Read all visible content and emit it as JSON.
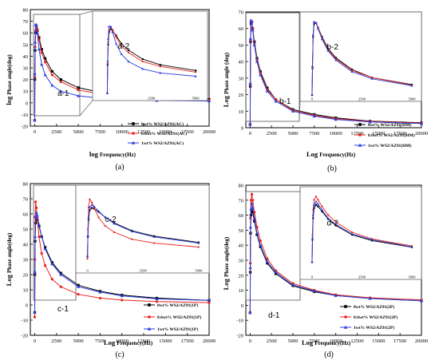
{
  "chart_data": [
    {
      "id": "a",
      "type": "line",
      "caption": "(a)",
      "xlabel_prefix": "log",
      "xlabel": "Frequency(Hz)",
      "ylabel_prefix": "log",
      "ylabel": "Phase angle(deg)",
      "xlim": [
        -500,
        20000
      ],
      "ylim": [
        -20,
        80
      ],
      "xticks": [
        0,
        2500,
        5000,
        7500,
        10000,
        12500,
        15000,
        17500,
        20000
      ],
      "yticks": [
        -20,
        -10,
        0,
        10,
        20,
        30,
        40,
        50,
        60,
        70,
        80
      ],
      "inset_label": "a-2",
      "main_label": "a-1",
      "inset_xticks": [
        "2500",
        "5000"
      ],
      "series": [
        {
          "name": "0wt% WS2/AZ91(AC)",
          "color": "#000000",
          "marker": "square",
          "x": [
            0,
            20,
            50,
            100,
            200,
            300,
            500,
            800,
            1200,
            2000,
            3000,
            5000,
            7500,
            10000,
            14000,
            20000
          ],
          "y": [
            -15,
            20,
            45,
            60,
            64,
            62,
            56,
            46,
            38,
            27,
            20,
            13,
            9,
            6.5,
            4.5,
            3
          ]
        },
        {
          "name": "0.6wt% WS2/AZ91(AC)",
          "color": "#e8231a",
          "marker": "circle",
          "x": [
            0,
            20,
            50,
            100,
            200,
            300,
            500,
            800,
            1200,
            2000,
            3000,
            5000,
            7500,
            10000,
            14000,
            20000
          ],
          "y": [
            -15,
            22,
            48,
            62,
            66,
            63,
            54,
            43,
            35,
            24,
            18,
            11,
            7.5,
            5.5,
            3.8,
            2.5
          ]
        },
        {
          "name": "1wt% WS2/AZ91(AC)",
          "color": "#2a3fe0",
          "marker": "triangle",
          "x": [
            0,
            20,
            50,
            100,
            200,
            300,
            500,
            800,
            1200,
            2000,
            3000,
            5000,
            7500,
            10000,
            14000,
            20000
          ],
          "y": [
            -15,
            25,
            52,
            67,
            67,
            60,
            46,
            33,
            24,
            15,
            10,
            6,
            4,
            3,
            2,
            1.5
          ]
        }
      ]
    },
    {
      "id": "b",
      "type": "line",
      "caption": "(b)",
      "xlabel_prefix": "Log",
      "xlabel": "Frequency(Hz)",
      "ylabel_prefix": "Log",
      "ylabel": "Phase angle (deg)",
      "xlim": [
        -500,
        20000
      ],
      "ylim": [
        0,
        70
      ],
      "xticks": [
        0,
        2500,
        5000,
        7500,
        10000,
        12500,
        15000,
        17500,
        20000
      ],
      "yticks": [
        0,
        10,
        20,
        30,
        40,
        50,
        60,
        70
      ],
      "inset_label": "b-2",
      "main_label": "b-1",
      "inset_xticks": [
        "0",
        "2500",
        "5000"
      ],
      "series": [
        {
          "name": "0wt% WS2/AZ91(HM)",
          "color": "#000000",
          "marker": "square",
          "x": [
            0,
            20,
            50,
            100,
            200,
            300,
            500,
            800,
            1200,
            2000,
            3000,
            5000,
            7500,
            10000,
            14000,
            20000
          ],
          "y": [
            2,
            25,
            52,
            63,
            64,
            60,
            52,
            42,
            34,
            24,
            17,
            11,
            8,
            6,
            4,
            3
          ]
        },
        {
          "name": "0.6wt% WS2/AZ91(HM)",
          "color": "#e8231a",
          "marker": "circle",
          "x": [
            0,
            20,
            50,
            100,
            200,
            300,
            500,
            800,
            1200,
            2000,
            3000,
            5000,
            7500,
            10000,
            14000,
            20000
          ],
          "y": [
            2,
            26,
            53,
            64,
            64,
            60,
            51,
            41,
            33,
            23,
            17,
            10.5,
            7.5,
            5.5,
            3.8,
            2.8
          ]
        },
        {
          "name": "1wt% WS2/AZ91(HM)",
          "color": "#2a3fe0",
          "marker": "triangle",
          "x": [
            0,
            20,
            50,
            100,
            200,
            300,
            500,
            800,
            1200,
            2000,
            3000,
            5000,
            7500,
            10000,
            14000,
            20000
          ],
          "y": [
            2,
            27,
            54,
            65,
            64,
            59,
            50,
            40,
            32,
            22,
            16,
            10,
            7,
            5,
            3.5,
            2.5
          ]
        }
      ]
    },
    {
      "id": "c",
      "type": "line",
      "caption": "(c)",
      "xlabel_prefix": "Log",
      "xlabel": "Frequency(Hz)",
      "ylabel_prefix": "Log",
      "ylabel": "Phase angle(deg)",
      "xlim": [
        -500,
        20000
      ],
      "ylim": [
        -20,
        80
      ],
      "xticks": [
        0,
        2500,
        5000,
        7500,
        10000,
        12500,
        15000,
        17500,
        20000
      ],
      "yticks": [
        -20,
        -10,
        0,
        10,
        20,
        30,
        40,
        50,
        60,
        70,
        80
      ],
      "inset_label": "c-2",
      "main_label": "c-1",
      "inset_xticks": [
        "0",
        "2500",
        "5000"
      ],
      "series": [
        {
          "name": "0wt% WS2/AZ91(1P)",
          "color": "#000000",
          "marker": "square",
          "x": [
            0,
            20,
            50,
            100,
            200,
            300,
            500,
            800,
            1200,
            2000,
            3000,
            5000,
            7500,
            10000,
            14000,
            20000
          ],
          "y": [
            -5,
            20,
            42,
            54,
            57,
            56,
            52,
            45,
            38,
            28,
            21,
            13,
            9,
            6.5,
            4.5,
            3
          ]
        },
        {
          "name": "0.6wt% WS2/AZ91(1P)",
          "color": "#e8231a",
          "marker": "circle",
          "x": [
            0,
            20,
            50,
            100,
            200,
            300,
            500,
            800,
            1200,
            2000,
            3000,
            5000,
            7500,
            10000,
            14000,
            20000
          ],
          "y": [
            -8,
            30,
            58,
            68,
            64,
            57,
            45,
            34,
            26,
            17,
            12,
            7,
            4.5,
            3.2,
            2.2,
            1.5
          ]
        },
        {
          "name": "1wt% WS2/AZ91(1P)",
          "color": "#2a3fe0",
          "marker": "triangle",
          "x": [
            0,
            20,
            50,
            100,
            200,
            300,
            500,
            800,
            1200,
            2000,
            3000,
            5000,
            7500,
            10000,
            14000,
            20000
          ],
          "y": [
            -5,
            22,
            45,
            58,
            61,
            59,
            53,
            45,
            37,
            27,
            20,
            12,
            8.5,
            6,
            4,
            3
          ]
        }
      ]
    },
    {
      "id": "d",
      "type": "line",
      "caption": "(d)",
      "xlabel_prefix": "Log",
      "xlabel": "Frequency(Hz)",
      "ylabel_prefix": "Log",
      "ylabel": "Phase angle(deg)",
      "xlim": [
        -500,
        20000
      ],
      "ylim": [
        -20,
        80
      ],
      "xticks": [
        0,
        2500,
        5000,
        7500,
        10000,
        12500,
        15000,
        17500,
        20000
      ],
      "yticks": [
        -20,
        -10,
        0,
        10,
        20,
        30,
        40,
        50,
        60,
        70,
        80
      ],
      "inset_label": "d-2",
      "main_label": "d-1",
      "inset_xticks": [
        "0",
        "2500",
        "5000"
      ],
      "series": [
        {
          "name": "0wt% WS2/AZ91(2P)",
          "color": "#000000",
          "marker": "square",
          "x": [
            0,
            20,
            50,
            100,
            200,
            300,
            500,
            800,
            1200,
            2000,
            3000,
            5000,
            7500,
            10000,
            14000,
            20000
          ],
          "y": [
            -5,
            22,
            48,
            60,
            64,
            62,
            56,
            47,
            39,
            28,
            21,
            13,
            9,
            6.5,
            4.5,
            3
          ]
        },
        {
          "name": "0.6wt% WS2/AZ91(2P)",
          "color": "#e8231a",
          "marker": "circle",
          "x": [
            0,
            20,
            50,
            100,
            200,
            300,
            500,
            800,
            1200,
            2000,
            3000,
            5000,
            7500,
            10000,
            14000,
            20000
          ],
          "y": [
            -5,
            28,
            58,
            70,
            74,
            70,
            62,
            52,
            43,
            31,
            23,
            14.5,
            10,
            7,
            5,
            3.5
          ]
        },
        {
          "name": "1wt% WS2/AZ91(2P)",
          "color": "#2a3fe0",
          "marker": "triangle",
          "x": [
            0,
            20,
            50,
            100,
            200,
            300,
            500,
            800,
            1200,
            2000,
            3000,
            5000,
            7500,
            10000,
            14000,
            20000
          ],
          "y": [
            -5,
            25,
            52,
            64,
            68,
            65,
            58,
            48,
            40,
            29,
            22,
            13.5,
            9.5,
            6.5,
            4.5,
            3
          ]
        }
      ]
    }
  ]
}
